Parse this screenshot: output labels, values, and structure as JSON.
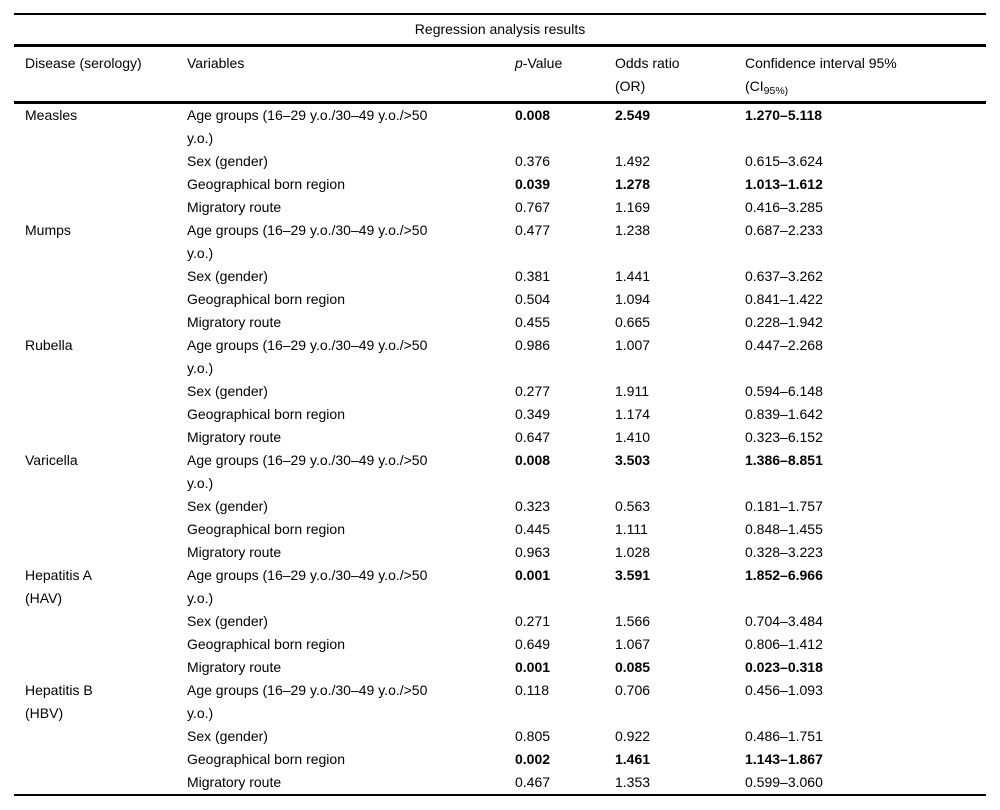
{
  "title": "Regression analysis results",
  "colors": {
    "text": "#000000",
    "background": "#ffffff",
    "rule": "#000000"
  },
  "columns": {
    "disease": "Disease (serology)",
    "variables": "Variables",
    "p_italic": "p",
    "p_rest": "-Value",
    "or_line1": "Odds ratio",
    "or_line2": "(OR)",
    "ci_line1": "Confidence interval 95%",
    "ci_line2_prefix": "(CI",
    "ci_line2_sub": "95%)"
  },
  "table": {
    "groups": [
      {
        "disease": "Measles",
        "rows": [
          {
            "variable": "Age groups (16–29 y.o./30–49 y.o./>50\ny.o.)",
            "p": "0.008",
            "or": "2.549",
            "ci": "1.270–5.118",
            "bold": true
          },
          {
            "variable": "Sex (gender)",
            "p": "0.376",
            "or": "1.492",
            "ci": "0.615–3.624",
            "bold": false
          },
          {
            "variable": "Geographical born region",
            "p": "0.039",
            "or": "1.278",
            "ci": "1.013–1.612",
            "bold": true
          },
          {
            "variable": "Migratory route",
            "p": "0.767",
            "or": "1.169",
            "ci": "0.416–3.285",
            "bold": false
          }
        ]
      },
      {
        "disease": "Mumps",
        "rows": [
          {
            "variable": "Age groups (16–29 y.o./30–49 y.o./>50\ny.o.)",
            "p": "0.477",
            "or": "1.238",
            "ci": "0.687–2.233",
            "bold": false
          },
          {
            "variable": "Sex (gender)",
            "p": "0.381",
            "or": "1.441",
            "ci": "0.637–3.262",
            "bold": false
          },
          {
            "variable": "Geographical born region",
            "p": "0.504",
            "or": "1.094",
            "ci": "0.841–1.422",
            "bold": false
          },
          {
            "variable": "Migratory route",
            "p": "0.455",
            "or": "0.665",
            "ci": "0.228–1.942",
            "bold": false
          }
        ]
      },
      {
        "disease": "Rubella",
        "rows": [
          {
            "variable": "Age groups (16–29 y.o./30–49 y.o./>50\ny.o.)",
            "p": "0.986",
            "or": "1.007",
            "ci": "0.447–2.268",
            "bold": false
          },
          {
            "variable": "Sex (gender)",
            "p": "0.277",
            "or": "1.911",
            "ci": "0.594–6.148",
            "bold": false
          },
          {
            "variable": "Geographical born region",
            "p": "0.349",
            "or": "1.174",
            "ci": "0.839–1.642",
            "bold": false
          },
          {
            "variable": "Migratory route",
            "p": "0.647",
            "or": "1.410",
            "ci": "0.323–6.152",
            "bold": false
          }
        ]
      },
      {
        "disease": "Varicella",
        "rows": [
          {
            "variable": "Age groups (16–29 y.o./30–49 y.o./>50\ny.o.)",
            "p": "0.008",
            "or": "3.503",
            "ci": "1.386–8.851",
            "bold": true
          },
          {
            "variable": "Sex (gender)",
            "p": "0.323",
            "or": "0.563",
            "ci": "0.181–1.757",
            "bold": false
          },
          {
            "variable": "Geographical born region",
            "p": "0.445",
            "or": "1.111",
            "ci": "0.848–1.455",
            "bold": false
          },
          {
            "variable": "Migratory route",
            "p": "0.963",
            "or": "1.028",
            "ci": "0.328–3.223",
            "bold": false
          }
        ]
      },
      {
        "disease": "Hepatitis A\n(HAV)",
        "rows": [
          {
            "variable": "Age groups (16–29 y.o./30–49 y.o./>50\ny.o.)",
            "p": "0.001",
            "or": "3.591",
            "ci": "1.852–6.966",
            "bold": true
          },
          {
            "variable": "Sex (gender)",
            "p": "0.271",
            "or": "1.566",
            "ci": "0.704–3.484",
            "bold": false
          },
          {
            "variable": "Geographical born region",
            "p": "0.649",
            "or": "1.067",
            "ci": "0.806–1.412",
            "bold": false
          },
          {
            "variable": "Migratory route",
            "p": "0.001",
            "or": "0.085",
            "ci": "0.023–0.318",
            "bold": true
          }
        ]
      },
      {
        "disease": "Hepatitis B\n(HBV)",
        "rows": [
          {
            "variable": "Age groups (16–29 y.o./30–49 y.o./>50\ny.o.)",
            "p": "0.118",
            "or": "0.706",
            "ci": "0.456–1.093",
            "bold": false
          },
          {
            "variable": "Sex (gender)",
            "p": "0.805",
            "or": "0.922",
            "ci": "0.486–1.751",
            "bold": false
          },
          {
            "variable": "Geographical born region",
            "p": "0.002",
            "or": "1.461",
            "ci": "1.143–1.867",
            "bold": true
          },
          {
            "variable": "Migratory route",
            "p": "0.467",
            "or": "1.353",
            "ci": "0.599–3.060",
            "bold": false
          }
        ]
      }
    ]
  }
}
